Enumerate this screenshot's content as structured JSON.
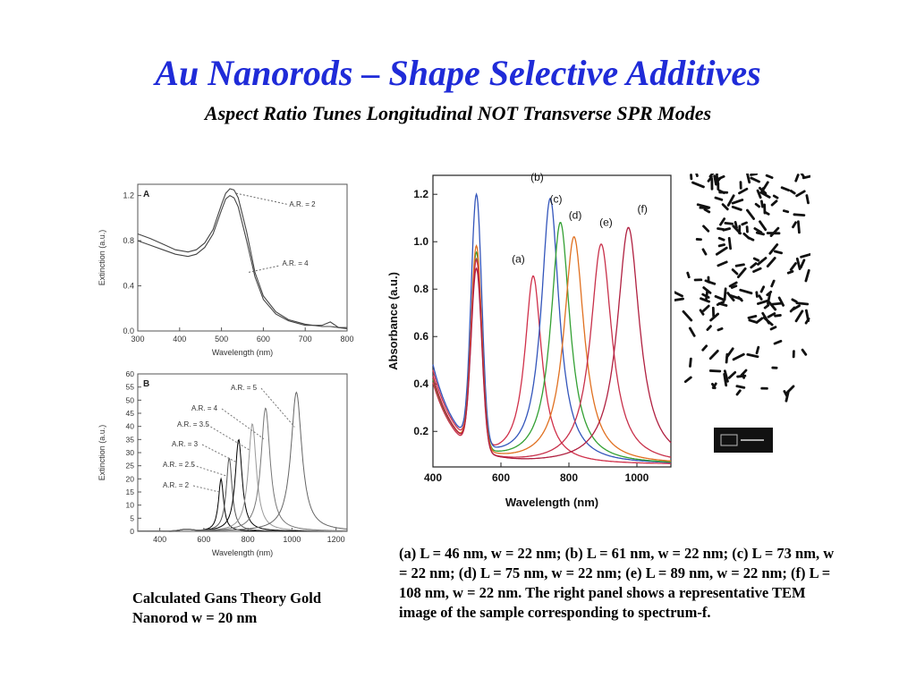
{
  "slide": {
    "title": "Au Nanorods – Shape Selective Additives",
    "subtitle": "Aspect Ratio Tunes Longitudinal NOT Transverse SPR Modes",
    "caption_left": "Calculated Gans Theory Gold Nanorod w = 20 nm",
    "caption_right": "(a) L = 46 nm, w = 22 nm; (b) L = 61 nm, w =  22 nm; (c) L = 73 nm, w = 22 nm; (d) L = 75 nm, w = 22 nm; (e) L = 89 nm, w = 22 nm; (f) L = 108 nm, w = 22 nm. The right panel shows a representative TEM image of the sample corresponding to spectrum-f."
  },
  "chart_data": [
    {
      "type": "line",
      "panel_label": "A",
      "xlabel": "Wavelength (nm)",
      "ylabel": "Extinction (a.u.)",
      "xlim": [
        300,
        800
      ],
      "ylim": [
        0.0,
        1.3
      ],
      "xticks": [
        "300",
        "400",
        "500",
        "600",
        "700",
        "800"
      ],
      "yticks": [
        "0.0",
        "0.4",
        "0.8",
        "1.2"
      ],
      "color": "#444444",
      "series": [
        {
          "name": "A.R. = 2",
          "x": [
            300,
            330,
            360,
            390,
            420,
            440,
            460,
            480,
            500,
            510,
            520,
            530,
            540,
            560,
            580,
            600,
            630,
            660,
            700,
            740,
            760,
            780,
            800
          ],
          "values": [
            0.86,
            0.82,
            0.77,
            0.72,
            0.7,
            0.72,
            0.78,
            0.9,
            1.12,
            1.22,
            1.26,
            1.25,
            1.18,
            0.88,
            0.52,
            0.31,
            0.17,
            0.1,
            0.06,
            0.04,
            0.04,
            0.03,
            0.03
          ]
        },
        {
          "name": "A.R. = 4",
          "x": [
            300,
            330,
            360,
            390,
            420,
            440,
            460,
            480,
            500,
            510,
            520,
            530,
            540,
            560,
            580,
            600,
            630,
            660,
            700,
            740,
            760,
            780,
            800
          ],
          "values": [
            0.8,
            0.76,
            0.72,
            0.68,
            0.66,
            0.68,
            0.74,
            0.86,
            1.07,
            1.17,
            1.2,
            1.18,
            1.1,
            0.8,
            0.48,
            0.28,
            0.15,
            0.09,
            0.05,
            0.05,
            0.08,
            0.03,
            0.02
          ]
        }
      ],
      "annotations": [
        "A.R. = 2",
        "A.R. = 4"
      ]
    },
    {
      "type": "line",
      "panel_label": "B",
      "xlabel": "Wavelength (nm)",
      "ylabel": "Extinction (a.u.)",
      "xlim": [
        300,
        1250
      ],
      "ylim": [
        0,
        60
      ],
      "xticks": [
        "400",
        "600",
        "800",
        "1000",
        "1200"
      ],
      "yticks": [
        "0",
        "5",
        "10",
        "15",
        "20",
        "25",
        "30",
        "35",
        "40",
        "45",
        "50",
        "55",
        "60"
      ],
      "series": [
        {
          "name": "A.R. = 2",
          "peak": 678,
          "height": 20,
          "width": 14,
          "color": "#000000"
        },
        {
          "name": "A.R. = 2.5",
          "peak": 715,
          "height": 28,
          "width": 16,
          "color": "#555555"
        },
        {
          "name": "A.R. = 3",
          "peak": 758,
          "height": 35,
          "width": 19,
          "color": "#000000"
        },
        {
          "name": "A.R. = 3.5",
          "peak": 820,
          "height": 41,
          "width": 22,
          "color": "#999999"
        },
        {
          "name": "A.R. = 4",
          "peak": 880,
          "height": 47,
          "width": 25,
          "color": "#777777"
        },
        {
          "name": "A.R. = 5",
          "peak": 1020,
          "height": 53,
          "width": 30,
          "color": "#666666"
        }
      ],
      "annotations": [
        "A.R. = 5",
        "A.R. = 4",
        "A.R. = 3.5",
        "A.R. = 3",
        "A.R. = 2.5",
        "A.R. = 2"
      ]
    },
    {
      "type": "line",
      "xlabel": "Wavelength (nm)",
      "ylabel": "Absorbance (a.u.)",
      "xlim": [
        400,
        1100
      ],
      "ylim": [
        0.05,
        1.28
      ],
      "xticks": [
        "400",
        "600",
        "800",
        "1000"
      ],
      "yticks": [
        "0.2",
        "0.4",
        "0.6",
        "0.8",
        "1.0",
        "1.2"
      ],
      "series": [
        {
          "name": "(a)",
          "peak": 695,
          "height": 0.89,
          "transverse": 0.93,
          "base": 0.71,
          "color": "#d0304a"
        },
        {
          "name": "(b)",
          "peak": 745,
          "height": 1.22,
          "transverse": 1.2,
          "base": 0.75,
          "color": "#3355bb"
        },
        {
          "name": "(c)",
          "peak": 775,
          "height": 1.12,
          "transverse": 0.97,
          "base": 0.64,
          "color": "#33a033"
        },
        {
          "name": "(d)",
          "peak": 815,
          "height": 1.06,
          "transverse": 1.0,
          "base": 0.66,
          "color": "#e07020"
        },
        {
          "name": "(e)",
          "peak": 895,
          "height": 1.03,
          "transverse": 0.95,
          "base": 0.62,
          "color": "#c8304a"
        },
        {
          "name": "(f)",
          "peak": 975,
          "height": 1.1,
          "transverse": 0.91,
          "base": 0.67,
          "color": "#b02040"
        }
      ],
      "annotations": [
        "(a)",
        "(b)",
        "(c)",
        "(d)",
        "(e)",
        "(f)"
      ]
    }
  ],
  "tem_image": {
    "icon": "tem-micrograph"
  }
}
